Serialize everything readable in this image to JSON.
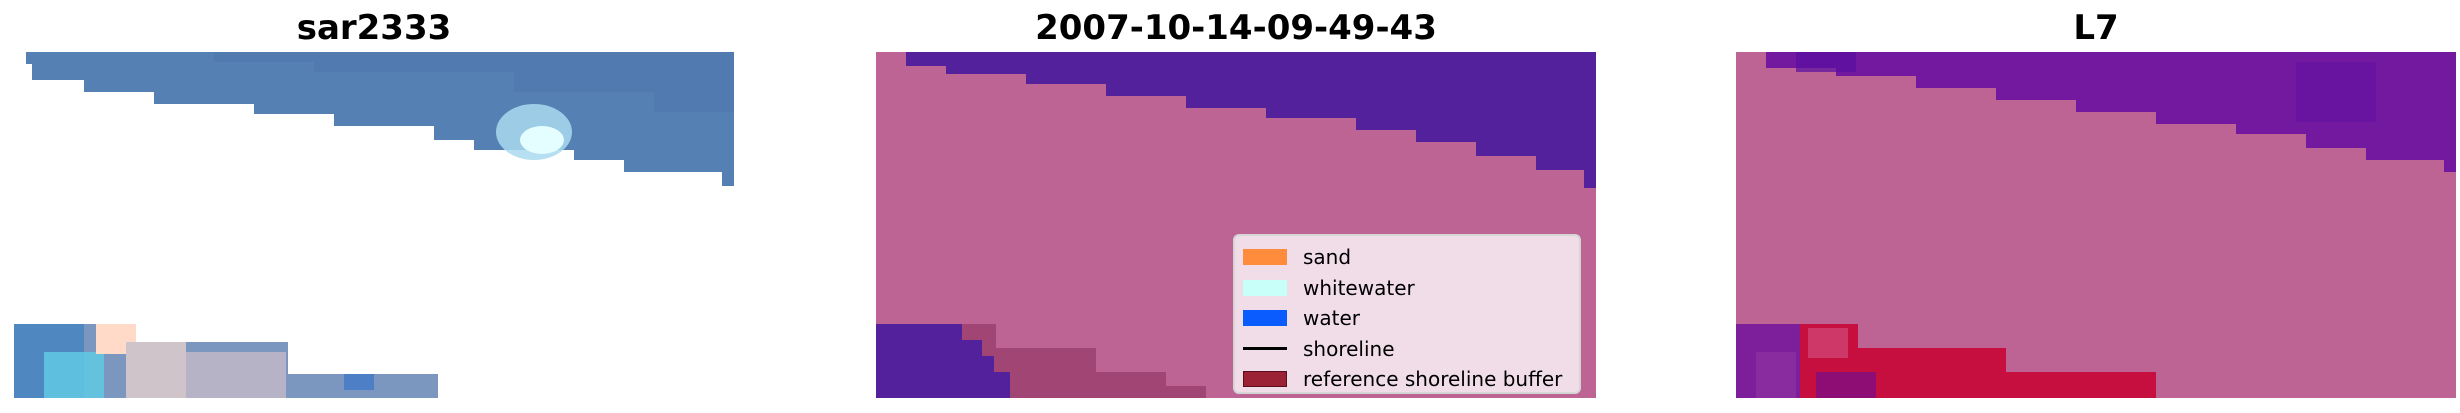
{
  "panels": [
    {
      "title": "sar2333"
    },
    {
      "title": "2007-10-14-09-49-43"
    },
    {
      "title": "L7"
    }
  ],
  "legend": {
    "items": [
      {
        "label": "sand",
        "color": "#ff8c3c",
        "kind": "patch"
      },
      {
        "label": "whitewater",
        "color": "#c8fff8",
        "kind": "patch"
      },
      {
        "label": "water",
        "color": "#0a5cff",
        "kind": "patch"
      },
      {
        "label": "shoreline",
        "color": "#000000",
        "kind": "line"
      },
      {
        "label": "reference shoreline buffer",
        "color": "#9b2235",
        "kind": "patch"
      }
    ]
  },
  "colors": {
    "rgb_water": "#5580b4",
    "rgb_water_alt": "#4f7ab2",
    "rgb_whitewater": "#dffcff",
    "class_sand": "#bd6495",
    "class_water": "#53219b",
    "buffer": "#9c3f6e",
    "l7_water": "#7219a0",
    "l7_buffer": "#c70f3f"
  }
}
